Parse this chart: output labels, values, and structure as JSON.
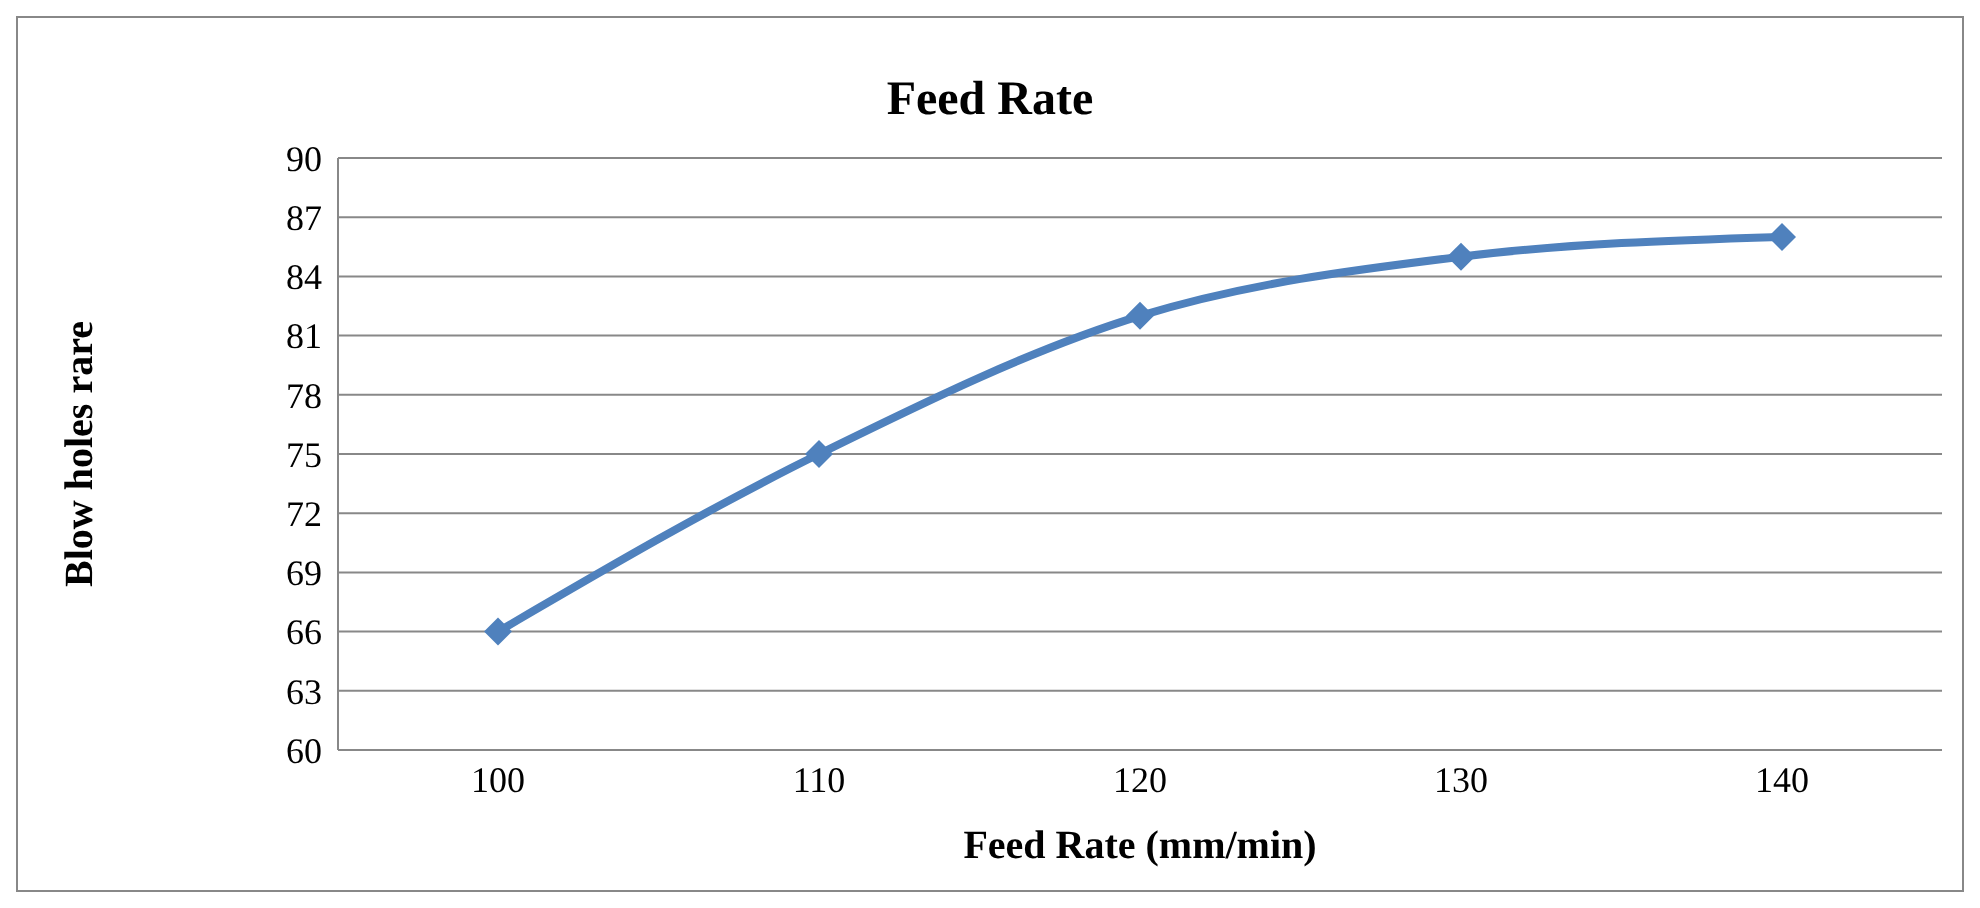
{
  "chart_data": {
    "type": "line",
    "title": "Feed Rate",
    "xlabel": "Feed Rate (mm/min)",
    "ylabel": "Blow holes rare",
    "categories": [
      "100",
      "110",
      "120",
      "130",
      "140"
    ],
    "series": [
      {
        "color": "#4f81bd",
        "values": [
          66,
          75,
          82,
          85,
          86
        ]
      }
    ],
    "ylim": [
      60,
      90
    ],
    "yticks": [
      60,
      63,
      66,
      69,
      72,
      75,
      78,
      81,
      84,
      87,
      90
    ],
    "grid": "y",
    "legend": false,
    "marker": "diamond",
    "line_style": "solid"
  }
}
